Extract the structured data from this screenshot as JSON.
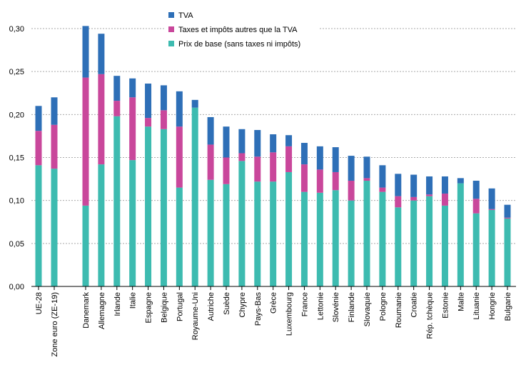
{
  "chart_data": {
    "type": "bar",
    "stacked": true,
    "title": "",
    "xlabel": "",
    "ylabel": "",
    "ylim": [
      0,
      0.3
    ],
    "yticks": [
      "0,00",
      "0,05",
      "0,10",
      "0,15",
      "0,20",
      "0,25",
      "0,30"
    ],
    "grid": true,
    "legend_position": "top-center",
    "categories": [
      "UE-28",
      "Zone euro (ZE-19)",
      "Danemark",
      "Allemagne",
      "Irlande",
      "Italie",
      "Espagne",
      "Belgique",
      "Portugal",
      "Royaume-Uni",
      "Autriche",
      "Suède",
      "Chypre",
      "Pays-Bas",
      "Grèce",
      "Luxembourg",
      "France",
      "Lettonie",
      "Slovénie",
      "Finlande",
      "Slovaquie",
      "Pologne",
      "Roumanie",
      "Croatie",
      "Rép. tchèque",
      "Estonie",
      "Malte",
      "Lituanie",
      "Hongrie",
      "Bulgarie"
    ],
    "gap_after_index": 1,
    "series": [
      {
        "name": "Prix de base (sans taxes ni impôts)",
        "color": "#3dbbb0",
        "values": [
          0.141,
          0.137,
          0.094,
          0.142,
          0.198,
          0.147,
          0.186,
          0.183,
          0.115,
          0.208,
          0.124,
          0.119,
          0.146,
          0.122,
          0.122,
          0.133,
          0.11,
          0.109,
          0.112,
          0.1,
          0.123,
          0.11,
          0.092,
          0.1,
          0.105,
          0.094,
          0.12,
          0.085,
          0.089,
          0.079
        ]
      },
      {
        "name": "Taxes et impôts autres que la TVA",
        "color": "#c9479b",
        "values": [
          0.04,
          0.051,
          0.149,
          0.105,
          0.018,
          0.073,
          0.01,
          0.022,
          0.071,
          0.0,
          0.041,
          0.031,
          0.009,
          0.029,
          0.034,
          0.03,
          0.032,
          0.027,
          0.021,
          0.023,
          0.003,
          0.005,
          0.013,
          0.004,
          0.002,
          0.014,
          0.0,
          0.017,
          0.001,
          0.001
        ]
      },
      {
        "name": "TVA",
        "color": "#2e6fb7",
        "values": [
          0.029,
          0.032,
          0.06,
          0.047,
          0.029,
          0.022,
          0.04,
          0.029,
          0.041,
          0.009,
          0.032,
          0.036,
          0.028,
          0.031,
          0.021,
          0.013,
          0.025,
          0.027,
          0.029,
          0.029,
          0.025,
          0.026,
          0.026,
          0.026,
          0.021,
          0.02,
          0.006,
          0.021,
          0.024,
          0.015
        ]
      }
    ],
    "legend_order": [
      "TVA",
      "Taxes et impôts autres que la TVA",
      "Prix de base (sans taxes ni impôts)"
    ]
  }
}
